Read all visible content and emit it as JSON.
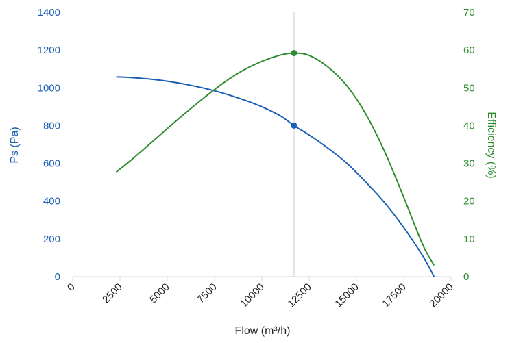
{
  "chart_data": {
    "type": "line",
    "title": "",
    "xlabel": "Flow (m³/h)",
    "xlim": [
      0,
      20000
    ],
    "x_ticks": [
      "0",
      "2500",
      "5000",
      "7500",
      "10000",
      "12500",
      "15000",
      "17500",
      "20000"
    ],
    "y_left": {
      "label": "Ps (Pa)",
      "lim": [
        0,
        1400
      ],
      "ticks": [
        "0",
        "200",
        "400",
        "600",
        "800",
        "1000",
        "1200",
        "1400"
      ],
      "color": "#1a5fb4"
    },
    "y_right": {
      "label": "Efficiency (%)",
      "lim": [
        0,
        70
      ],
      "ticks": [
        "0",
        "10",
        "20",
        "30",
        "40",
        "50",
        "60",
        "70"
      ],
      "color": "#2e8b2e"
    },
    "grid": false,
    "legend": "none",
    "operating_point": {
      "x": 11700,
      "ps": 800,
      "efficiency": 59.2
    },
    "series": [
      {
        "axis": "left",
        "color": "#1a5fb4",
        "x": [
          2300,
          3000,
          4000,
          5000,
          6000,
          7000,
          8000,
          9000,
          10000,
          11000,
          11700,
          12500,
          13500,
          14500,
          15500,
          16500,
          17500,
          18500,
          19100
        ],
        "values": [
          1058,
          1055,
          1047,
          1035,
          1018,
          997,
          970,
          938,
          900,
          850,
          800,
          750,
          680,
          600,
          500,
          390,
          260,
          110,
          0
        ]
      },
      {
        "axis": "right",
        "color": "#2e8b2e",
        "x": [
          2300,
          3000,
          4000,
          5000,
          6000,
          7000,
          8000,
          9000,
          10000,
          11000,
          11700,
          12500,
          13500,
          14500,
          15500,
          16500,
          17500,
          18500,
          19100
        ],
        "values": [
          27.7,
          30.5,
          34.8,
          39.2,
          43.5,
          47.6,
          51.4,
          54.6,
          57.0,
          58.7,
          59.2,
          58.6,
          55.5,
          50.5,
          43.0,
          33.0,
          21.0,
          8.5,
          3.0
        ]
      }
    ]
  }
}
